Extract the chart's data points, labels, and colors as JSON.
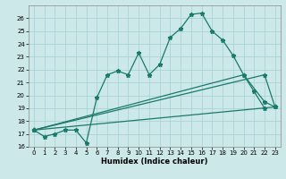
{
  "xlabel": "Humidex (Indice chaleur)",
  "ylabel": "",
  "bg_color": "#cce8e8",
  "line_color": "#1a7a6a",
  "grid_color": "#aad4d4",
  "xlim": [
    -0.5,
    23.5
  ],
  "ylim": [
    16,
    27
  ],
  "yticks": [
    16,
    17,
    18,
    19,
    20,
    21,
    22,
    23,
    24,
    25,
    26
  ],
  "xticks": [
    0,
    1,
    2,
    3,
    4,
    5,
    6,
    7,
    8,
    9,
    10,
    11,
    12,
    13,
    14,
    15,
    16,
    17,
    18,
    19,
    20,
    21,
    22,
    23
  ],
  "line1_x": [
    0,
    1,
    2,
    3,
    4,
    5,
    6,
    7,
    8,
    9,
    10,
    11,
    12,
    13,
    14,
    15,
    16,
    17,
    18,
    19,
    20,
    21,
    22
  ],
  "line1_y": [
    17.3,
    16.8,
    17.0,
    17.3,
    17.3,
    16.3,
    19.8,
    21.6,
    21.9,
    21.6,
    23.3,
    21.6,
    22.4,
    24.5,
    25.2,
    26.3,
    26.4,
    25.0,
    24.3,
    23.1,
    21.6,
    20.3,
    19.0
  ],
  "line2_x": [
    0,
    22,
    23
  ],
  "line2_y": [
    17.3,
    21.6,
    19.1
  ],
  "line3_x": [
    0,
    20,
    22,
    23
  ],
  "line3_y": [
    17.3,
    21.6,
    19.5,
    19.1
  ],
  "line4_x": [
    0,
    23
  ],
  "line4_y": [
    17.3,
    19.1
  ]
}
